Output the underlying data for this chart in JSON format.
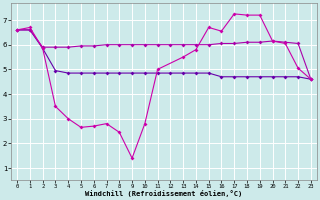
{
  "xlabel": "Windchill (Refroidissement éolien,°C)",
  "bg_color": "#cdeaea",
  "grid_color": "#b0d8d8",
  "line_color_pink": "#cc00aa",
  "line_color_dark": "#6600aa",
  "line_color_mid": "#aa00aa",
  "xlim": [
    -0.5,
    23.5
  ],
  "ylim": [
    0.5,
    7.7
  ],
  "xticks": [
    0,
    1,
    2,
    3,
    4,
    5,
    6,
    7,
    8,
    9,
    10,
    11,
    12,
    13,
    14,
    15,
    16,
    17,
    18,
    19,
    20,
    21,
    22,
    23
  ],
  "yticks": [
    1,
    2,
    3,
    4,
    5,
    6,
    7
  ],
  "series_pink_x": [
    0,
    1,
    2,
    3,
    4,
    5,
    6,
    7,
    8,
    9,
    10,
    11,
    13,
    14,
    15,
    16,
    17,
    18,
    19,
    20,
    21,
    22,
    23
  ],
  "series_pink_y": [
    6.6,
    6.7,
    5.85,
    3.5,
    3.0,
    2.65,
    2.7,
    2.8,
    2.45,
    1.4,
    2.8,
    5.0,
    5.5,
    5.8,
    6.7,
    6.55,
    7.25,
    7.2,
    7.2,
    6.15,
    6.05,
    5.05,
    4.6
  ],
  "series_dark_x": [
    0,
    1,
    2,
    3,
    4,
    5,
    6,
    7,
    8,
    9,
    10,
    11,
    12,
    13,
    14,
    15,
    16,
    17,
    18,
    19,
    20,
    21,
    22,
    23
  ],
  "series_dark_y": [
    6.6,
    6.6,
    5.85,
    4.95,
    4.85,
    4.85,
    4.85,
    4.85,
    4.85,
    4.85,
    4.85,
    4.85,
    4.85,
    4.85,
    4.85,
    4.85,
    4.7,
    4.7,
    4.7,
    4.7,
    4.7,
    4.7,
    4.7,
    4.6
  ],
  "series_mid_x": [
    0,
    1,
    2,
    3,
    4,
    5,
    6,
    7,
    8,
    9,
    10,
    11,
    12,
    13,
    14,
    15,
    16,
    17,
    18,
    19,
    20,
    21,
    22,
    23
  ],
  "series_mid_y": [
    6.6,
    6.6,
    5.9,
    5.9,
    5.9,
    5.95,
    5.95,
    6.0,
    6.0,
    6.0,
    6.0,
    6.0,
    6.0,
    6.0,
    6.0,
    6.0,
    6.05,
    6.05,
    6.1,
    6.1,
    6.15,
    6.1,
    6.05,
    4.6
  ]
}
